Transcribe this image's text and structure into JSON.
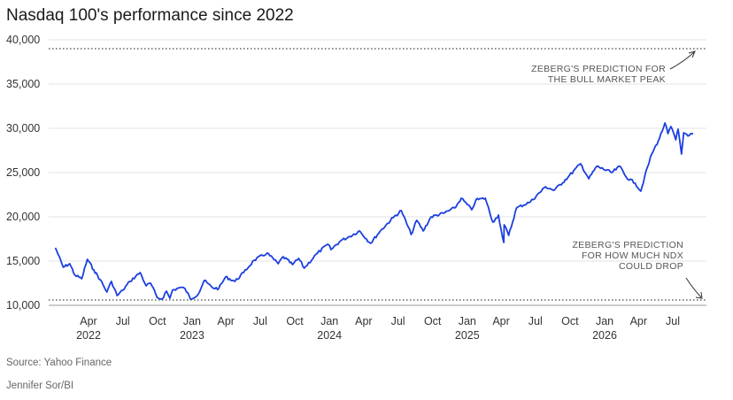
{
  "title": "Nasdaq 100's performance since 2022",
  "source": "Source: Yahoo Finance",
  "credit": "Jennifer Sor/BI",
  "chart_data": {
    "type": "line",
    "title": "Nasdaq 100's performance since 2022",
    "ylim": [
      10000,
      40000
    ],
    "yticks": [
      10000,
      15000,
      20000,
      25000,
      30000,
      35000,
      40000
    ],
    "ytick_labels": [
      "10,000",
      "15,000",
      "20,000",
      "25,000",
      "30,000",
      "35,000",
      "40,000"
    ],
    "xlim": [
      "2022-01-01",
      "2026-08-31"
    ],
    "xticks": [
      {
        "date": "2022-04-01",
        "label": "Apr",
        "year": "2022"
      },
      {
        "date": "2022-07-01",
        "label": "Jul",
        "year": ""
      },
      {
        "date": "2022-10-01",
        "label": "Oct",
        "year": ""
      },
      {
        "date": "2023-01-01",
        "label": "Jan",
        "year": "2023"
      },
      {
        "date": "2023-04-01",
        "label": "Apr",
        "year": ""
      },
      {
        "date": "2023-07-01",
        "label": "Jul",
        "year": ""
      },
      {
        "date": "2023-10-01",
        "label": "Oct",
        "year": ""
      },
      {
        "date": "2024-01-01",
        "label": "Jan",
        "year": "2024"
      },
      {
        "date": "2024-04-01",
        "label": "Apr",
        "year": ""
      },
      {
        "date": "2024-07-01",
        "label": "Jul",
        "year": ""
      },
      {
        "date": "2024-10-01",
        "label": "Oct",
        "year": ""
      },
      {
        "date": "2025-01-01",
        "label": "Jan",
        "year": "2025"
      },
      {
        "date": "2025-04-01",
        "label": "Apr",
        "year": ""
      },
      {
        "date": "2025-07-01",
        "label": "Jul",
        "year": ""
      },
      {
        "date": "2025-10-01",
        "label": "Oct",
        "year": ""
      },
      {
        "date": "2026-01-01",
        "label": "Jan",
        "year": "2026"
      },
      {
        "date": "2026-04-01",
        "label": "Apr",
        "year": ""
      },
      {
        "date": "2026-07-01",
        "label": "Jul",
        "year": ""
      }
    ],
    "grid": true,
    "series": [
      {
        "color": "#1b3fe0",
        "points": [
          [
            "2022-01-03",
            16500
          ],
          [
            "2022-01-24",
            14300
          ],
          [
            "2022-02-10",
            14700
          ],
          [
            "2022-02-24",
            13400
          ],
          [
            "2022-03-14",
            13000
          ],
          [
            "2022-03-29",
            15200
          ],
          [
            "2022-04-15",
            14000
          ],
          [
            "2022-05-02",
            12900
          ],
          [
            "2022-05-20",
            11500
          ],
          [
            "2022-06-01",
            12700
          ],
          [
            "2022-06-16",
            11100
          ],
          [
            "2022-07-01",
            11700
          ],
          [
            "2022-07-20",
            12700
          ],
          [
            "2022-08-16",
            13700
          ],
          [
            "2022-09-01",
            12200
          ],
          [
            "2022-09-13",
            12500
          ],
          [
            "2022-09-30",
            10900
          ],
          [
            "2022-10-13",
            10700
          ],
          [
            "2022-10-25",
            11600
          ],
          [
            "2022-11-03",
            10800
          ],
          [
            "2022-11-10",
            11700
          ],
          [
            "2022-11-30",
            12000
          ],
          [
            "2022-12-13",
            11900
          ],
          [
            "2022-12-28",
            10700
          ],
          [
            "2023-01-18",
            11300
          ],
          [
            "2023-02-02",
            12800
          ],
          [
            "2023-02-24",
            12000
          ],
          [
            "2023-03-13",
            11900
          ],
          [
            "2023-03-31",
            13200
          ],
          [
            "2023-04-25",
            12700
          ],
          [
            "2023-05-18",
            13700
          ],
          [
            "2023-06-15",
            15100
          ],
          [
            "2023-07-19",
            15900
          ],
          [
            "2023-08-18",
            14700
          ],
          [
            "2023-08-31",
            15500
          ],
          [
            "2023-09-25",
            14600
          ],
          [
            "2023-10-11",
            15300
          ],
          [
            "2023-10-26",
            14200
          ],
          [
            "2023-11-30",
            15900
          ],
          [
            "2023-12-28",
            16900
          ],
          [
            "2024-01-05",
            16300
          ],
          [
            "2024-01-31",
            17300
          ],
          [
            "2024-02-20",
            17700
          ],
          [
            "2024-03-21",
            18400
          ],
          [
            "2024-04-19",
            17000
          ],
          [
            "2024-05-15",
            18400
          ],
          [
            "2024-06-18",
            19900
          ],
          [
            "2024-07-10",
            20700
          ],
          [
            "2024-08-05",
            18000
          ],
          [
            "2024-08-20",
            19600
          ],
          [
            "2024-09-06",
            18400
          ],
          [
            "2024-09-27",
            20000
          ],
          [
            "2024-10-30",
            20400
          ],
          [
            "2024-11-29",
            21000
          ],
          [
            "2024-12-16",
            22100
          ],
          [
            "2025-01-13",
            20800
          ],
          [
            "2025-01-24",
            21900
          ],
          [
            "2025-02-18",
            22100
          ],
          [
            "2025-03-10",
            19400
          ],
          [
            "2025-03-25",
            20200
          ],
          [
            "2025-04-04",
            17800
          ],
          [
            "2025-04-08",
            17100
          ],
          [
            "2025-04-09",
            19100
          ],
          [
            "2025-04-21",
            17900
          ],
          [
            "2025-05-12",
            21000
          ],
          [
            "2025-06-18",
            21700
          ],
          [
            "2025-07-28",
            23400
          ],
          [
            "2025-08-20",
            23000
          ],
          [
            "2025-09-26",
            24500
          ],
          [
            "2025-10-29",
            26000
          ],
          [
            "2025-11-20",
            24300
          ],
          [
            "2025-12-11",
            25700
          ],
          [
            "2026-01-20",
            25000
          ],
          [
            "2026-02-11",
            25700
          ],
          [
            "2026-02-27",
            24500
          ],
          [
            "2026-03-23",
            23800
          ],
          [
            "2026-04-07",
            22900
          ],
          [
            "2026-04-17",
            24500
          ],
          [
            "2026-05-06",
            27100
          ],
          [
            "2026-05-27",
            28900
          ],
          [
            "2026-06-10",
            30600
          ],
          [
            "2026-06-18",
            29400
          ],
          [
            "2026-06-26",
            30200
          ],
          [
            "2026-07-09",
            28700
          ],
          [
            "2026-07-15",
            29900
          ],
          [
            "2026-07-24",
            27100
          ],
          [
            "2026-07-30",
            29500
          ],
          [
            "2026-08-14",
            29200
          ],
          [
            "2026-08-24",
            29400
          ]
        ]
      }
    ],
    "reference_lines": [
      {
        "value": 39000,
        "style": "dotted",
        "label": [
          "ZEBERG'S PREDICTION FOR",
          "THE BULL MARKET PEAK"
        ]
      },
      {
        "value": 10600,
        "style": "dotted",
        "label": [
          "ZEBERG'S PREDICTION",
          "FOR HOW MUCH NDX",
          "COULD DROP"
        ]
      }
    ]
  }
}
